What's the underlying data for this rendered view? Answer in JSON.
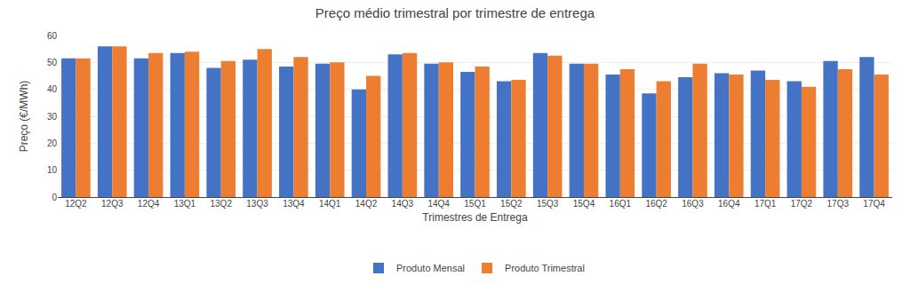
{
  "chart_data": {
    "type": "bar",
    "title": "Preço médio trimestral por trimestre de entrega",
    "xlabel": "Trimestres de Entrega",
    "ylabel": "Preço (€/MWh)",
    "categories": [
      "12Q2",
      "12Q3",
      "12Q4",
      "13Q1",
      "13Q2",
      "13Q3",
      "13Q4",
      "14Q1",
      "14Q2",
      "14Q3",
      "14Q4",
      "15Q1",
      "15Q2",
      "15Q3",
      "15Q4",
      "16Q1",
      "16Q2",
      "16Q3",
      "16Q4",
      "17Q1",
      "17Q2",
      "17Q3",
      "17Q4"
    ],
    "series": [
      {
        "name": "Produto Mensal",
        "color": "#4472c4",
        "values": [
          51.5,
          56.0,
          51.5,
          53.5,
          48.0,
          51.0,
          48.5,
          49.5,
          40.0,
          53.0,
          49.5,
          46.5,
          43.0,
          53.5,
          49.5,
          45.5,
          38.5,
          44.5,
          46.0,
          47.0,
          43.0,
          50.5,
          52.0
        ]
      },
      {
        "name": "Produto Trimestral",
        "color": "#ed7d31",
        "values": [
          51.5,
          56.0,
          53.5,
          54.0,
          50.5,
          55.0,
          52.0,
          50.0,
          45.0,
          53.5,
          50.0,
          48.5,
          43.5,
          52.5,
          49.5,
          47.5,
          43.0,
          49.5,
          45.5,
          43.5,
          41.0,
          47.5,
          45.5
        ]
      }
    ],
    "ylim": [
      0,
      60
    ],
    "yticks": [
      0,
      10,
      20,
      30,
      40,
      50,
      60
    ],
    "grid": true,
    "legend": "bottom"
  }
}
